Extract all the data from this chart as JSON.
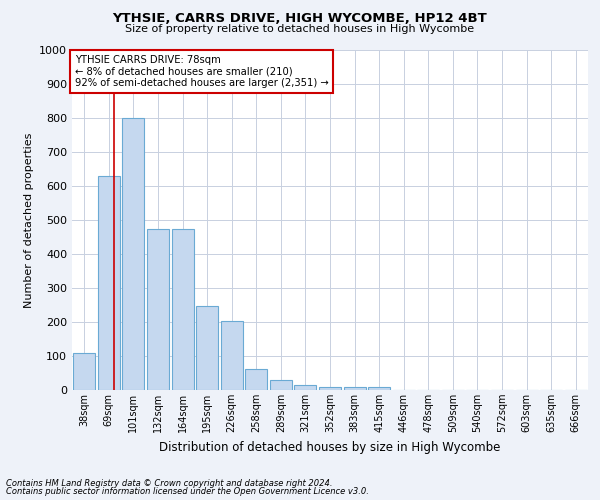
{
  "title": "YTHSIE, CARRS DRIVE, HIGH WYCOMBE, HP12 4BT",
  "subtitle": "Size of property relative to detached houses in High Wycombe",
  "xlabel": "Distribution of detached houses by size in High Wycombe",
  "ylabel": "Number of detached properties",
  "categories": [
    "38sqm",
    "69sqm",
    "101sqm",
    "132sqm",
    "164sqm",
    "195sqm",
    "226sqm",
    "258sqm",
    "289sqm",
    "321sqm",
    "352sqm",
    "383sqm",
    "415sqm",
    "446sqm",
    "478sqm",
    "509sqm",
    "540sqm",
    "572sqm",
    "603sqm",
    "635sqm",
    "666sqm"
  ],
  "values": [
    110,
    628,
    800,
    475,
    475,
    248,
    203,
    62,
    28,
    15,
    10,
    10,
    10,
    0,
    0,
    0,
    0,
    0,
    0,
    0,
    0
  ],
  "bar_color": "#c5d8ef",
  "bar_edge_color": "#6aaad4",
  "red_line_x": 1.2,
  "highlight_label": "YTHSIE CARRS DRIVE: 78sqm",
  "highlight_line1": "← 8% of detached houses are smaller (210)",
  "highlight_line2": "92% of semi-detached houses are larger (2,351) →",
  "annotation_box_color": "#cc0000",
  "ylim": [
    0,
    1000
  ],
  "yticks": [
    0,
    100,
    200,
    300,
    400,
    500,
    600,
    700,
    800,
    900,
    1000
  ],
  "footnote1": "Contains HM Land Registry data © Crown copyright and database right 2024.",
  "footnote2": "Contains public sector information licensed under the Open Government Licence v3.0.",
  "bg_color": "#eef2f9",
  "plot_bg_color": "#ffffff",
  "grid_color": "#c8d0e0"
}
